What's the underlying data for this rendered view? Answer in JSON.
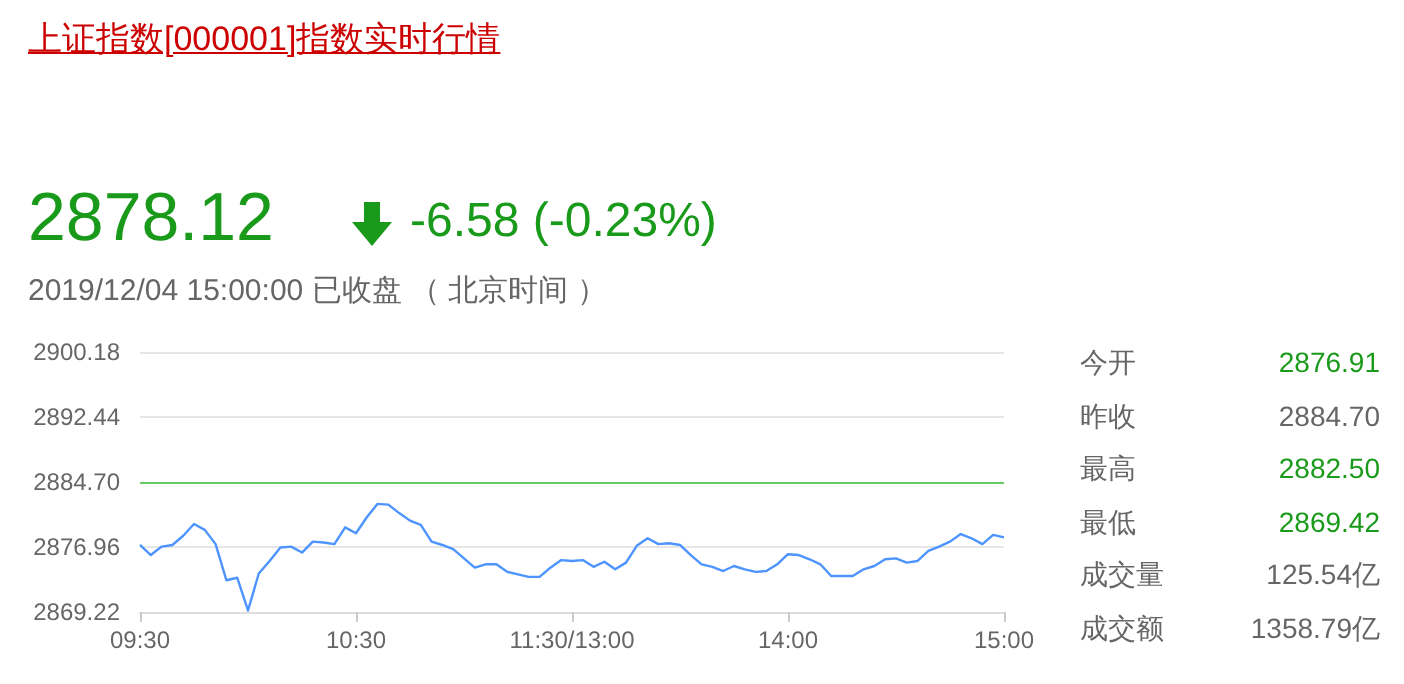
{
  "chart_data": {
    "type": "line",
    "title": "上证指数[000001]指数实时行情",
    "annotations": [
      "2878.12",
      "-6.58 (-0.23%)",
      "2019/12/04 15:00:00",
      "已收盘 （ 北京时间 ）",
      "今开",
      "2876.91",
      "昨收",
      "2884.70",
      "最高",
      "2882.50",
      "最低",
      "2869.42",
      "成交量",
      "125.54亿",
      "成交额",
      "1358.79亿"
    ],
    "categories": [
      "09:30",
      null,
      null,
      null,
      null,
      null,
      null,
      null,
      null,
      null,
      null,
      null,
      null,
      null,
      null,
      null,
      null,
      null,
      null,
      null,
      "10:30",
      null,
      null,
      null,
      null,
      null,
      null,
      null,
      null,
      null,
      null,
      null,
      null,
      null,
      null,
      null,
      null,
      null,
      null,
      null,
      "11:30/13:00",
      null,
      null,
      null,
      null,
      null,
      null,
      null,
      null,
      null,
      null,
      null,
      null,
      null,
      null,
      null,
      null,
      null,
      null,
      null,
      "14:00",
      null,
      null,
      null,
      null,
      null,
      null,
      null,
      null,
      null,
      null,
      null,
      null,
      null,
      null,
      null,
      null,
      null,
      null,
      null,
      "15:00"
    ],
    "series": [
      {
        "color": "#4d94ff",
        "values": [
          2877.2,
          2876.0,
          2877.0,
          2877.2,
          2878.3,
          2879.7,
          2879.0,
          2877.3,
          2873.0,
          2873.3,
          2869.4,
          2873.8,
          2875.3,
          2876.9,
          2877.0,
          2876.3,
          2877.6,
          2877.5,
          2877.3,
          2879.3,
          2878.6,
          2880.5,
          2882.1,
          2882.0,
          2881.0,
          2880.1,
          2879.6,
          2877.6,
          2877.2,
          2876.7,
          2875.6,
          2874.5,
          2874.9,
          2874.9,
          2874.0,
          2873.7,
          2873.4,
          2873.4,
          2874.5,
          2875.4,
          2875.3,
          2875.4,
          2874.6,
          2875.2,
          2874.3,
          2875.1,
          2877.1,
          2878.0,
          2877.3,
          2877.4,
          2877.2,
          2876.0,
          2874.9,
          2874.6,
          2874.1,
          2874.7,
          2874.3,
          2874.0,
          2874.1,
          2874.9,
          2876.1,
          2876.0,
          2875.5,
          2874.9,
          2873.5,
          2873.5,
          2873.5,
          2874.3,
          2874.7,
          2875.5,
          2875.6,
          2875.1,
          2875.3,
          2876.5,
          2877.0,
          2877.6,
          2878.5,
          2878.0,
          2877.3,
          2878.4,
          2878.1
        ]
      }
    ],
    "ylim": [
      2869.22,
      2900.18
    ],
    "yticks": [
      2869.22,
      2876.96,
      {
        "value": 2884.7,
        "label": "2884.70"
      },
      2892.44,
      2900.18
    ],
    "ref_lines": [
      {
        "axis": "y",
        "value": 2884.7,
        "color": "#66cc66"
      }
    ],
    "grid": "y",
    "marker": "none",
    "line_style": "solid"
  }
}
